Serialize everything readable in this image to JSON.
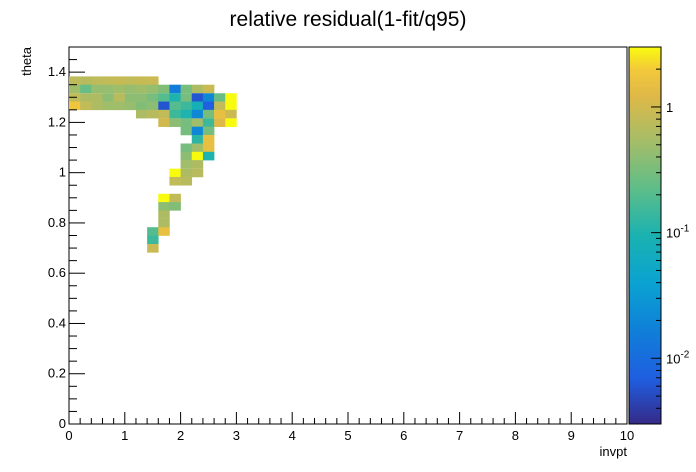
{
  "chart_data": {
    "type": "heatmap",
    "title": "relative residual(1-fit/q95)",
    "xlabel": "invpt",
    "ylabel": "theta",
    "xlim": [
      0,
      10
    ],
    "ylim": [
      0,
      1.5
    ],
    "x_ticks": [
      0,
      1,
      2,
      3,
      4,
      5,
      6,
      7,
      8,
      9,
      10
    ],
    "x_tick_labels": [
      "0",
      "1",
      "2",
      "3",
      "4",
      "5",
      "6",
      "7",
      "8",
      "9",
      "10"
    ],
    "y_ticks": [
      0,
      0.2,
      0.4,
      0.6,
      0.8,
      1.0,
      1.2,
      1.4
    ],
    "y_tick_labels": [
      "0",
      "0.2",
      "0.4",
      "0.6",
      "0.8",
      "1",
      "1.2",
      "1.4"
    ],
    "bin_width_x": 0.2,
    "bin_width_y": 0.033,
    "colorbar": {
      "scale": "log",
      "min": 0.003,
      "max": 3.0,
      "tick_values": [
        0.01,
        0.1,
        1
      ],
      "tick_labels": [
        {
          "base": "10",
          "exp": "-2"
        },
        {
          "base": "10",
          "exp": "-1"
        },
        {
          "base": "1",
          "exp": ""
        }
      ]
    },
    "cells": [
      [
        0.0,
        1.35,
        0.75
      ],
      [
        0.2,
        1.35,
        0.7
      ],
      [
        0.4,
        1.35,
        0.75
      ],
      [
        0.6,
        1.35,
        0.8
      ],
      [
        0.8,
        1.35,
        0.85
      ],
      [
        1.0,
        1.35,
        0.8
      ],
      [
        1.2,
        1.35,
        0.85
      ],
      [
        1.4,
        1.35,
        0.9
      ],
      [
        0.0,
        1.317,
        0.5
      ],
      [
        0.2,
        1.317,
        0.25
      ],
      [
        0.4,
        1.317,
        0.45
      ],
      [
        0.6,
        1.317,
        0.45
      ],
      [
        0.8,
        1.317,
        0.5
      ],
      [
        1.0,
        1.317,
        0.45
      ],
      [
        1.2,
        1.317,
        0.5
      ],
      [
        1.4,
        1.317,
        0.45
      ],
      [
        1.6,
        1.317,
        0.35
      ],
      [
        1.8,
        1.317,
        0.015
      ],
      [
        2.0,
        1.317,
        0.3
      ],
      [
        2.2,
        1.317,
        0.6
      ],
      [
        2.4,
        1.317,
        0.9
      ],
      [
        0.0,
        1.283,
        0.8
      ],
      [
        0.2,
        1.283,
        0.6
      ],
      [
        0.4,
        1.283,
        0.6
      ],
      [
        0.6,
        1.283,
        0.4
      ],
      [
        0.8,
        1.283,
        0.7
      ],
      [
        1.0,
        1.283,
        0.4
      ],
      [
        1.2,
        1.283,
        0.4
      ],
      [
        1.4,
        1.283,
        0.3
      ],
      [
        1.6,
        1.283,
        0.2
      ],
      [
        1.8,
        1.283,
        0.1
      ],
      [
        2.0,
        1.283,
        0.3
      ],
      [
        2.2,
        1.283,
        0.006
      ],
      [
        2.4,
        1.283,
        0.02
      ],
      [
        2.6,
        1.283,
        0.25
      ],
      [
        2.8,
        1.283,
        3.0
      ],
      [
        0.0,
        1.25,
        1.8
      ],
      [
        0.2,
        1.25,
        0.8
      ],
      [
        0.4,
        1.25,
        0.6
      ],
      [
        0.6,
        1.25,
        0.5
      ],
      [
        0.8,
        1.25,
        0.5
      ],
      [
        1.0,
        1.25,
        0.45
      ],
      [
        1.2,
        1.25,
        0.35
      ],
      [
        1.4,
        1.25,
        0.4
      ],
      [
        1.6,
        1.25,
        0.006
      ],
      [
        1.8,
        1.25,
        0.2
      ],
      [
        2.0,
        1.25,
        0.15
      ],
      [
        2.2,
        1.25,
        0.08
      ],
      [
        2.4,
        1.25,
        0.007
      ],
      [
        2.6,
        1.25,
        0.8
      ],
      [
        2.8,
        1.25,
        3.0
      ],
      [
        1.2,
        1.217,
        0.6
      ],
      [
        1.4,
        1.217,
        0.7
      ],
      [
        1.6,
        1.217,
        0.8
      ],
      [
        1.8,
        1.217,
        0.15
      ],
      [
        2.0,
        1.217,
        0.1
      ],
      [
        2.2,
        1.217,
        0.02
      ],
      [
        2.4,
        1.217,
        0.3
      ],
      [
        2.6,
        1.217,
        1.5
      ],
      [
        2.8,
        1.217,
        0.9
      ],
      [
        1.6,
        1.183,
        1.0
      ],
      [
        1.8,
        1.183,
        0.4
      ],
      [
        2.0,
        1.183,
        0.3
      ],
      [
        2.2,
        1.183,
        0.5
      ],
      [
        2.4,
        1.183,
        0.15
      ],
      [
        2.6,
        1.183,
        1.2
      ],
      [
        2.8,
        1.183,
        3.0
      ],
      [
        2.0,
        1.15,
        0.3
      ],
      [
        2.2,
        1.15,
        0.02
      ],
      [
        2.4,
        1.15,
        0.3
      ],
      [
        2.2,
        1.117,
        0.12
      ],
      [
        2.4,
        1.117,
        1.5
      ],
      [
        2.0,
        1.083,
        0.3
      ],
      [
        2.2,
        1.083,
        0.5
      ],
      [
        2.4,
        1.083,
        1.5
      ],
      [
        2.0,
        1.05,
        0.4
      ],
      [
        2.2,
        1.05,
        3.0
      ],
      [
        2.4,
        1.05,
        0.1
      ],
      [
        2.0,
        1.017,
        0.5
      ],
      [
        2.2,
        1.017,
        0.6
      ],
      [
        1.8,
        0.983,
        3.0
      ],
      [
        2.0,
        0.983,
        0.6
      ],
      [
        2.2,
        0.983,
        0.7
      ],
      [
        1.8,
        0.95,
        0.8
      ],
      [
        2.0,
        0.95,
        0.7
      ],
      [
        1.6,
        0.883,
        3.0
      ],
      [
        1.8,
        0.883,
        0.8
      ],
      [
        1.6,
        0.85,
        0.4
      ],
      [
        1.8,
        0.85,
        0.35
      ],
      [
        1.6,
        0.817,
        0.6
      ],
      [
        1.6,
        0.783,
        0.6
      ],
      [
        1.4,
        0.75,
        0.2
      ],
      [
        1.6,
        0.75,
        1.5
      ],
      [
        1.4,
        0.717,
        0.15
      ],
      [
        1.4,
        0.683,
        0.9
      ]
    ]
  }
}
